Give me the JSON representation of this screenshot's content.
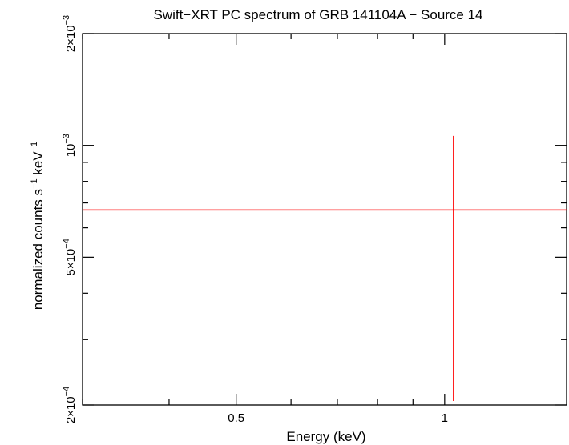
{
  "chart_data": {
    "type": "scatter",
    "title": "Swift−XRT PC spectrum of GRB 141104A − Source 14",
    "xlabel": "Energy (keV)",
    "ylabel": {
      "parts": [
        {
          "text": "normalized counts s"
        },
        {
          "text": "−1",
          "sup": true
        },
        {
          "text": " keV"
        },
        {
          "text": "−1",
          "sup": true
        }
      ]
    },
    "x_scale": "log",
    "y_scale": "log",
    "xlim": [
      0.3,
      1.5
    ],
    "ylim": [
      0.0002,
      0.002
    ],
    "x_ticks": [
      {
        "value": 0.5,
        "label": "0.5"
      },
      {
        "value": 1,
        "label": "1"
      }
    ],
    "y_ticks": [
      {
        "value": 0.0002,
        "mantissa": "2×10",
        "exponent": "−4"
      },
      {
        "value": 0.0005,
        "mantissa": "5×10",
        "exponent": "−4"
      },
      {
        "value": 0.001,
        "mantissa": "10",
        "exponent": "−3"
      },
      {
        "value": 0.002,
        "mantissa": "2×10",
        "exponent": "−3"
      }
    ],
    "series": [
      {
        "color": "#ff0000",
        "points": [
          {
            "x": 1.03,
            "x_err": [
              0.3,
              1.5
            ],
            "y": 0.00067,
            "y_err": [
              0.000205,
              0.00106
            ]
          }
        ]
      }
    ]
  }
}
